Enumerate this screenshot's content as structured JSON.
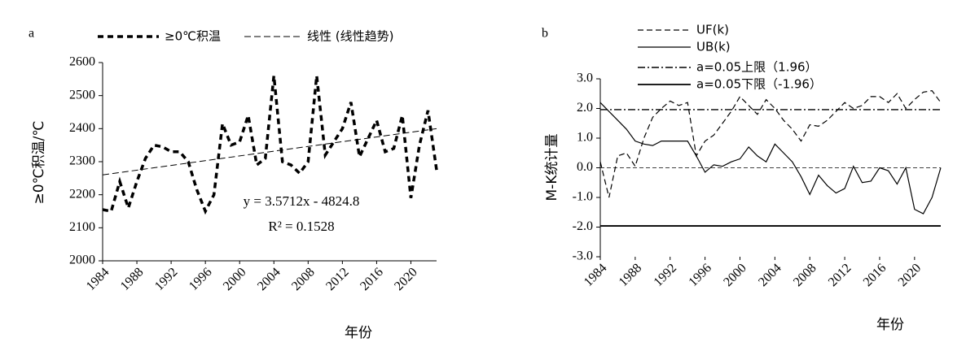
{
  "chart_data": [
    {
      "type": "line",
      "panel": "a",
      "xlabel": "年份",
      "ylabel": "≥0℃积温/℃",
      "xlim": [
        1984,
        2023
      ],
      "xticks": [
        1984,
        1988,
        1992,
        1996,
        2000,
        2004,
        2008,
        2012,
        2016,
        2020
      ],
      "ylim": [
        2000,
        2600
      ],
      "yticks": [
        2000,
        2100,
        2200,
        2300,
        2400,
        2500,
        2600
      ],
      "annotations": [
        "y = 3.5712x - 4824.8",
        "R² = 0.1528"
      ],
      "series": [
        {
          "name": "≥0℃积温",
          "color": "#000000",
          "style": "dash-bold",
          "x": [
            1984,
            1985,
            1986,
            1987,
            1988,
            1989,
            1990,
            1991,
            1992,
            1993,
            1994,
            1995,
            1996,
            1997,
            1998,
            1999,
            2000,
            2001,
            2002,
            2003,
            2004,
            2005,
            2006,
            2007,
            2008,
            2009,
            2010,
            2011,
            2012,
            2013,
            2014,
            2015,
            2016,
            2017,
            2018,
            2019,
            2020,
            2021,
            2022,
            2023
          ],
          "values": [
            2155,
            2150,
            2240,
            2160,
            2240,
            2310,
            2350,
            2345,
            2330,
            2330,
            2300,
            2215,
            2150,
            2200,
            2415,
            2350,
            2360,
            2440,
            2290,
            2310,
            2560,
            2300,
            2290,
            2265,
            2300,
            2560,
            2320,
            2360,
            2400,
            2480,
            2315,
            2370,
            2425,
            2330,
            2340,
            2440,
            2190,
            2350,
            2455,
            2275
          ]
        },
        {
          "name": "线性 (线性趋势)",
          "color": "#000000",
          "style": "thin",
          "x": [
            1984,
            2023
          ],
          "values": [
            2260,
            2400
          ]
        }
      ]
    },
    {
      "type": "line",
      "panel": "b",
      "xlabel": "年份",
      "ylabel": "M-K统计量",
      "xlim": [
        1984,
        2023
      ],
      "xticks": [
        1984,
        1988,
        1992,
        1996,
        2000,
        2004,
        2008,
        2012,
        2016,
        2020
      ],
      "ylim": [
        -3,
        3
      ],
      "yticks": [
        {
          "value": -3,
          "label": "-3.0"
        },
        {
          "value": -2,
          "label": "-2.0"
        },
        {
          "value": -1,
          "label": "-1.0"
        },
        {
          "value": 0,
          "label": "0.0"
        },
        {
          "value": 1,
          "label": "1.0"
        },
        {
          "value": 2,
          "label": "2.0"
        },
        {
          "value": 3,
          "label": "3.0"
        }
      ],
      "reference_lines": [
        0
      ],
      "series": [
        {
          "name": "UF(k)",
          "color": "#000000",
          "style": "dash",
          "x": [
            1984,
            1985,
            1986,
            1987,
            1988,
            1989,
            1990,
            1991,
            1992,
            1993,
            1994,
            1995,
            1996,
            1997,
            1998,
            1999,
            2000,
            2001,
            2002,
            2003,
            2004,
            2005,
            2006,
            2007,
            2008,
            2009,
            2010,
            2011,
            2012,
            2013,
            2014,
            2015,
            2016,
            2017,
            2018,
            2019,
            2020,
            2021,
            2022,
            2023
          ],
          "values": [
            0.2,
            -1.0,
            0.4,
            0.5,
            0.05,
            1.0,
            1.7,
            2.0,
            2.25,
            2.1,
            2.2,
            0.4,
            0.9,
            1.1,
            1.5,
            1.9,
            2.4,
            2.1,
            1.8,
            2.3,
            2.0,
            1.6,
            1.3,
            0.9,
            1.45,
            1.4,
            1.6,
            1.9,
            2.2,
            2.0,
            2.1,
            2.4,
            2.4,
            2.2,
            2.5,
            2.0,
            2.3,
            2.55,
            2.6,
            2.2
          ]
        },
        {
          "name": "UB(k)",
          "color": "#000000",
          "style": "solid",
          "x": [
            1984,
            1985,
            1986,
            1987,
            1988,
            1989,
            1990,
            1991,
            1992,
            1993,
            1994,
            1995,
            1996,
            1997,
            1998,
            1999,
            2000,
            2001,
            2002,
            2003,
            2004,
            2005,
            2006,
            2007,
            2008,
            2009,
            2010,
            2011,
            2012,
            2013,
            2014,
            2015,
            2016,
            2017,
            2018,
            2019,
            2020,
            2021,
            2022,
            2023
          ],
          "values": [
            2.2,
            1.9,
            1.6,
            1.3,
            0.9,
            0.8,
            0.75,
            0.9,
            0.9,
            0.9,
            0.9,
            0.4,
            -0.15,
            0.1,
            0.05,
            0.2,
            0.3,
            0.7,
            0.4,
            0.2,
            0.8,
            0.5,
            0.2,
            -0.3,
            -0.9,
            -0.25,
            -0.6,
            -0.85,
            -0.7,
            0.05,
            -0.5,
            -0.45,
            0.0,
            -0.1,
            -0.55,
            0.0,
            -1.4,
            -1.55,
            -1.0,
            0.0
          ]
        },
        {
          "name": "a=0.05上限（1.96）",
          "color": "#000000",
          "style": "dashdot",
          "value": 1.96
        },
        {
          "name": "a=0.05下限（-1.96）",
          "color": "#000000",
          "style": "solid-bold",
          "value": -1.96
        }
      ]
    }
  ]
}
